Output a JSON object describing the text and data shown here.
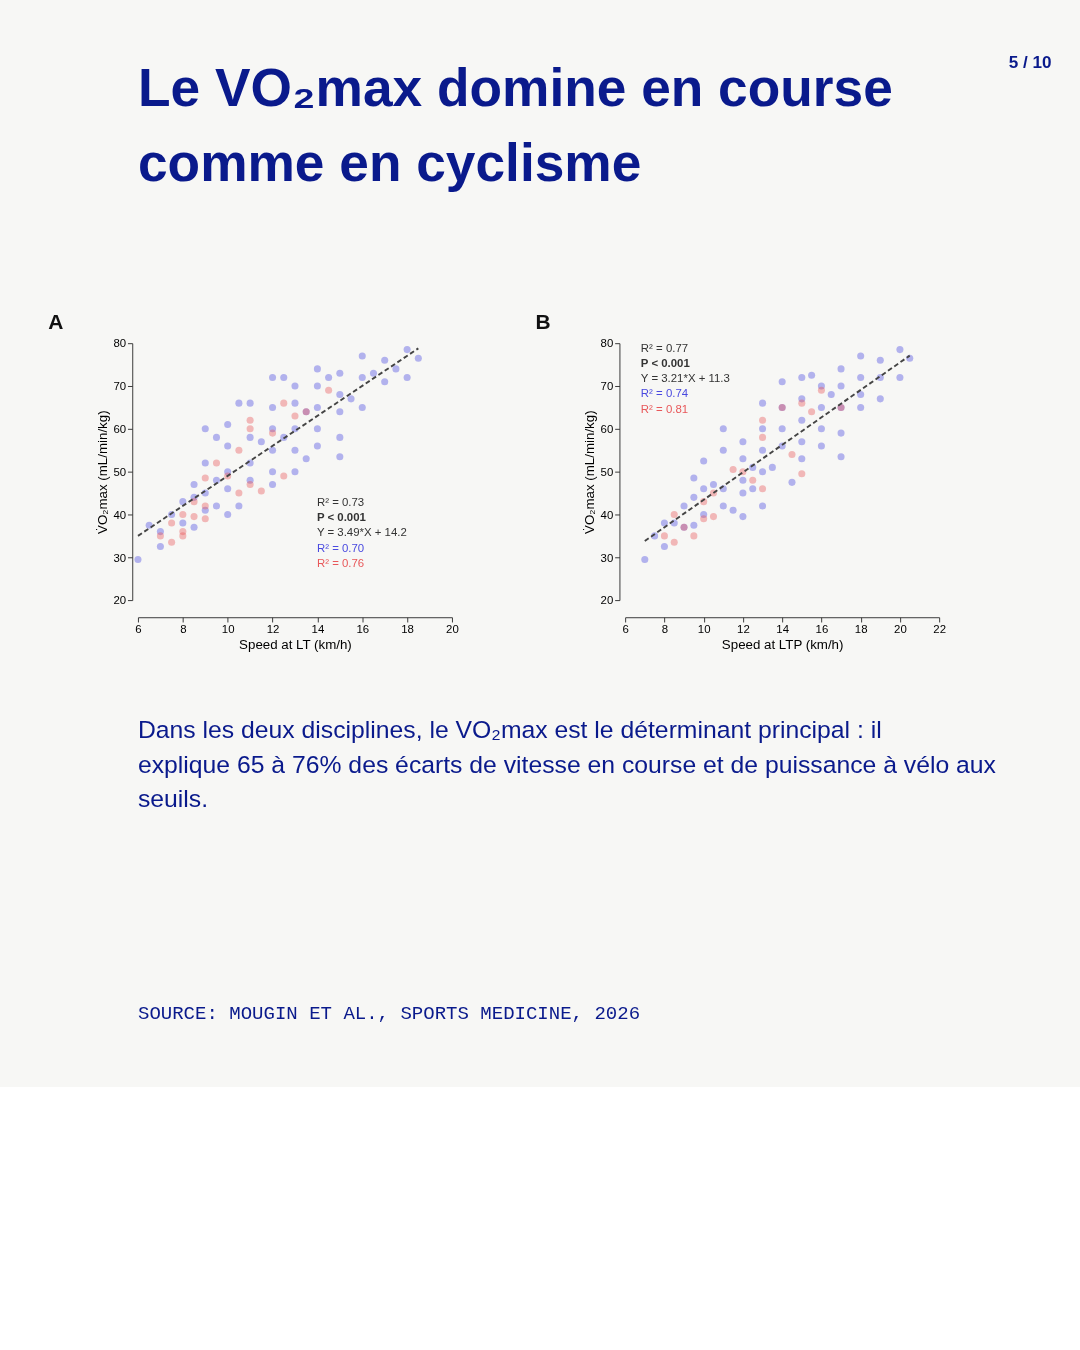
{
  "chart_data": [
    {
      "type": "other",
      "title": "Le VO₂max domine en course comme en cyclisme",
      "annotations": [
        "5 / 10"
      ]
    },
    {
      "type": "scatter",
      "title": "A",
      "xlabel": "Speed at LT (km/h)",
      "ylabel": "V̇O₂max (mL/min/kg)",
      "xlim": [
        6,
        20
      ],
      "ylim": [
        20,
        80
      ],
      "xticks": [
        6,
        8,
        10,
        12,
        14,
        16,
        18,
        20
      ],
      "yticks": [
        20,
        30,
        40,
        50,
        60,
        70,
        80
      ],
      "grid": false,
      "series": [
        {
          "color": "#4a4ae0",
          "marker": "circle",
          "x": [
            6,
            6.5,
            7,
            7,
            7.5,
            8,
            8,
            8.5,
            8.5,
            8.5,
            9,
            9,
            9,
            9,
            9.5,
            9.5,
            9.5,
            10,
            10,
            10,
            10,
            10,
            10.5,
            10.5,
            11,
            11,
            11,
            11,
            11.5,
            12,
            12,
            12,
            12,
            12,
            12,
            12.5,
            12.5,
            13,
            13,
            13,
            13,
            13,
            13.5,
            13.5,
            14,
            14,
            14,
            14,
            14,
            14.5,
            15,
            15,
            15,
            15,
            15,
            15.5,
            16,
            16,
            16,
            16.5,
            17,
            17,
            17.5,
            18,
            18,
            18.5
          ],
          "values": [
            29.5,
            37.5,
            36,
            32.5,
            40,
            43,
            38,
            47,
            44,
            37,
            60,
            52,
            45,
            41,
            58,
            48,
            42,
            61,
            56,
            50,
            46,
            40,
            66,
            42,
            66,
            58,
            52,
            48,
            57,
            72,
            65,
            60,
            55,
            50,
            47,
            72,
            58,
            70,
            66,
            60,
            55,
            50,
            64,
            53,
            74,
            70,
            65,
            60,
            56,
            72,
            73,
            68,
            64,
            58,
            53.5,
            67,
            77,
            72,
            65,
            73,
            76,
            71,
            74,
            78.5,
            72,
            76.5
          ]
        },
        {
          "color": "#e8585a",
          "marker": "circle",
          "x": [
            7,
            7.5,
            7.5,
            8,
            8,
            8,
            8.5,
            8.5,
            9,
            9,
            9,
            9.5,
            10,
            10.5,
            10.5,
            11,
            11,
            11,
            11.5,
            12,
            12.5,
            12.5,
            13,
            13.5,
            14.5
          ],
          "values": [
            35,
            33.5,
            38,
            40,
            36,
            35,
            43,
            39.5,
            48.5,
            42,
            39,
            52,
            49,
            55,
            45,
            62,
            60,
            47,
            45.5,
            59,
            66,
            49,
            63,
            64,
            69
          ]
        },
        {
          "type": "line",
          "line_style": "dashed",
          "color": "#444444",
          "x": [
            6,
            18.5
          ],
          "values": [
            35,
            78.8
          ]
        }
      ],
      "annotations": [
        "R² = 0.73",
        "P < 0.001",
        "Y = 3.49*X + 14.2",
        "R² = 0.70",
        "R² = 0.76"
      ]
    },
    {
      "type": "scatter",
      "title": "B",
      "xlabel": "Speed at LTP (km/h)",
      "ylabel": "V̇O₂max (mL/min/kg)",
      "xlim": [
        6,
        22
      ],
      "ylim": [
        20,
        80
      ],
      "xticks": [
        6,
        8,
        10,
        12,
        14,
        16,
        18,
        20,
        22
      ],
      "yticks": [
        20,
        30,
        40,
        50,
        60,
        70,
        80
      ],
      "grid": false,
      "series": [
        {
          "color": "#4a4ae0",
          "marker": "circle",
          "x": [
            7,
            7.5,
            8,
            8,
            8.5,
            9,
            9,
            9.5,
            9.5,
            9.5,
            10,
            10,
            10,
            10.5,
            11,
            11,
            11,
            11,
            11.5,
            12,
            12,
            12,
            12,
            12,
            12.5,
            12.5,
            13,
            13,
            13,
            13,
            13,
            13.5,
            14,
            14,
            14,
            14,
            14.5,
            15,
            15,
            15,
            15,
            15,
            15.5,
            16,
            16,
            16,
            16,
            16.5,
            17,
            17,
            17,
            17,
            17,
            18,
            18,
            18,
            18,
            19,
            19,
            19,
            20,
            20,
            20.5
          ],
          "values": [
            29.5,
            35,
            32.5,
            38,
            38,
            42,
            37,
            48.5,
            44,
            37.5,
            52.5,
            46,
            40,
            47,
            60,
            55,
            46,
            42,
            41,
            57,
            53,
            48,
            45,
            39.5,
            51,
            46,
            66,
            60,
            55,
            50,
            42,
            51,
            71,
            65,
            60,
            56,
            47.5,
            72,
            67,
            62,
            57,
            53,
            72.5,
            70,
            65,
            60,
            56,
            68,
            74,
            70,
            65,
            59,
            53.5,
            77,
            72,
            68,
            65,
            76,
            72,
            67,
            78.5,
            72,
            76.5
          ]
        },
        {
          "color": "#e8585a",
          "marker": "circle",
          "x": [
            8,
            8.5,
            8.5,
            9,
            9.5,
            10,
            10,
            10.5,
            10.5,
            11.5,
            12,
            12.5,
            13,
            13,
            13,
            14,
            14.5,
            15,
            15,
            15.5,
            16,
            17
          ],
          "values": [
            35,
            33.5,
            40,
            37,
            35,
            43,
            39,
            45,
            39.5,
            50.5,
            50,
            48,
            62,
            58,
            46,
            65,
            54,
            66,
            49.5,
            64,
            69,
            65
          ]
        },
        {
          "type": "line",
          "line_style": "dashed",
          "color": "#444444",
          "x": [
            7,
            20.5
          ],
          "values": [
            33.8,
            77.1
          ]
        }
      ],
      "annotations": [
        "R² = 0.77",
        "P < 0.001",
        "Y = 3.21*X + 11.3",
        "R² = 0.74",
        "R² = 0.81"
      ]
    },
    {
      "type": "other",
      "annotations": [
        "Dans les deux disciplines, le VO₂max est le déterminant principal : il explique 65 à 76% des écarts de vitesse en course et de puissance à vélo aux seuils.",
        "SOURCE: MOUGIN ET AL., SPORTS MEDICINE, 2026"
      ]
    }
  ]
}
